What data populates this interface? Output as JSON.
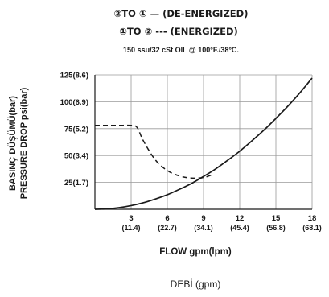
{
  "chart_data": {
    "type": "line",
    "title_lines": [
      "②TO ① — (DE-ENERGIZED)",
      "①TO ② --- (ENERGIZED)"
    ],
    "subtitle": "150 ssu/32 cSt OIL @ 100°F./38°C.",
    "ylabel_tr": "BASINÇ DÜŞÜMÜ(bar)",
    "ylabel_en": "PRESSURE DROP psi(bar)",
    "xlabel": "FLOW gpm(lpm)",
    "footer_label": "DEBİ (gpm)",
    "xlim": [
      0,
      18
    ],
    "ylim": [
      0,
      125
    ],
    "x_ticks": [
      {
        "value": 3,
        "line1": "3",
        "line2": "(11.4)"
      },
      {
        "value": 6,
        "line1": "6",
        "line2": "(22.7)"
      },
      {
        "value": 9,
        "line1": "9",
        "line2": "(34.1)"
      },
      {
        "value": 12,
        "line1": "12",
        "line2": "(45.4)"
      },
      {
        "value": 15,
        "line1": "15",
        "line2": "(56.8)"
      },
      {
        "value": 18,
        "line1": "18",
        "line2": "(68.1)"
      }
    ],
    "y_ticks": [
      {
        "value": 25,
        "label": "25(1.7)"
      },
      {
        "value": 50,
        "label": "50(3.4)"
      },
      {
        "value": 75,
        "label": "75(5.2)"
      },
      {
        "value": 100,
        "label": "100(6.9)"
      },
      {
        "value": 125,
        "label": "125(8.6)"
      }
    ],
    "grid": true,
    "series": [
      {
        "style": "solid",
        "x": [
          0,
          1,
          2,
          3,
          4,
          5,
          6,
          7,
          8,
          9,
          10,
          11,
          12,
          13,
          14,
          15,
          16,
          17,
          18
        ],
        "y": [
          0,
          0.4,
          1.5,
          3.4,
          6,
          9.5,
          13.5,
          18.5,
          24,
          30.5,
          37.5,
          45.5,
          54,
          63.5,
          73.5,
          84.5,
          96,
          108.5,
          122
        ]
      },
      {
        "style": "dashed",
        "x": [
          0,
          1,
          2,
          3,
          3.5,
          4,
          5,
          6,
          7,
          8,
          9,
          9.7
        ],
        "y": [
          78,
          78,
          78,
          78,
          76,
          64,
          46,
          36,
          31,
          29,
          29.5,
          32
        ]
      }
    ]
  }
}
